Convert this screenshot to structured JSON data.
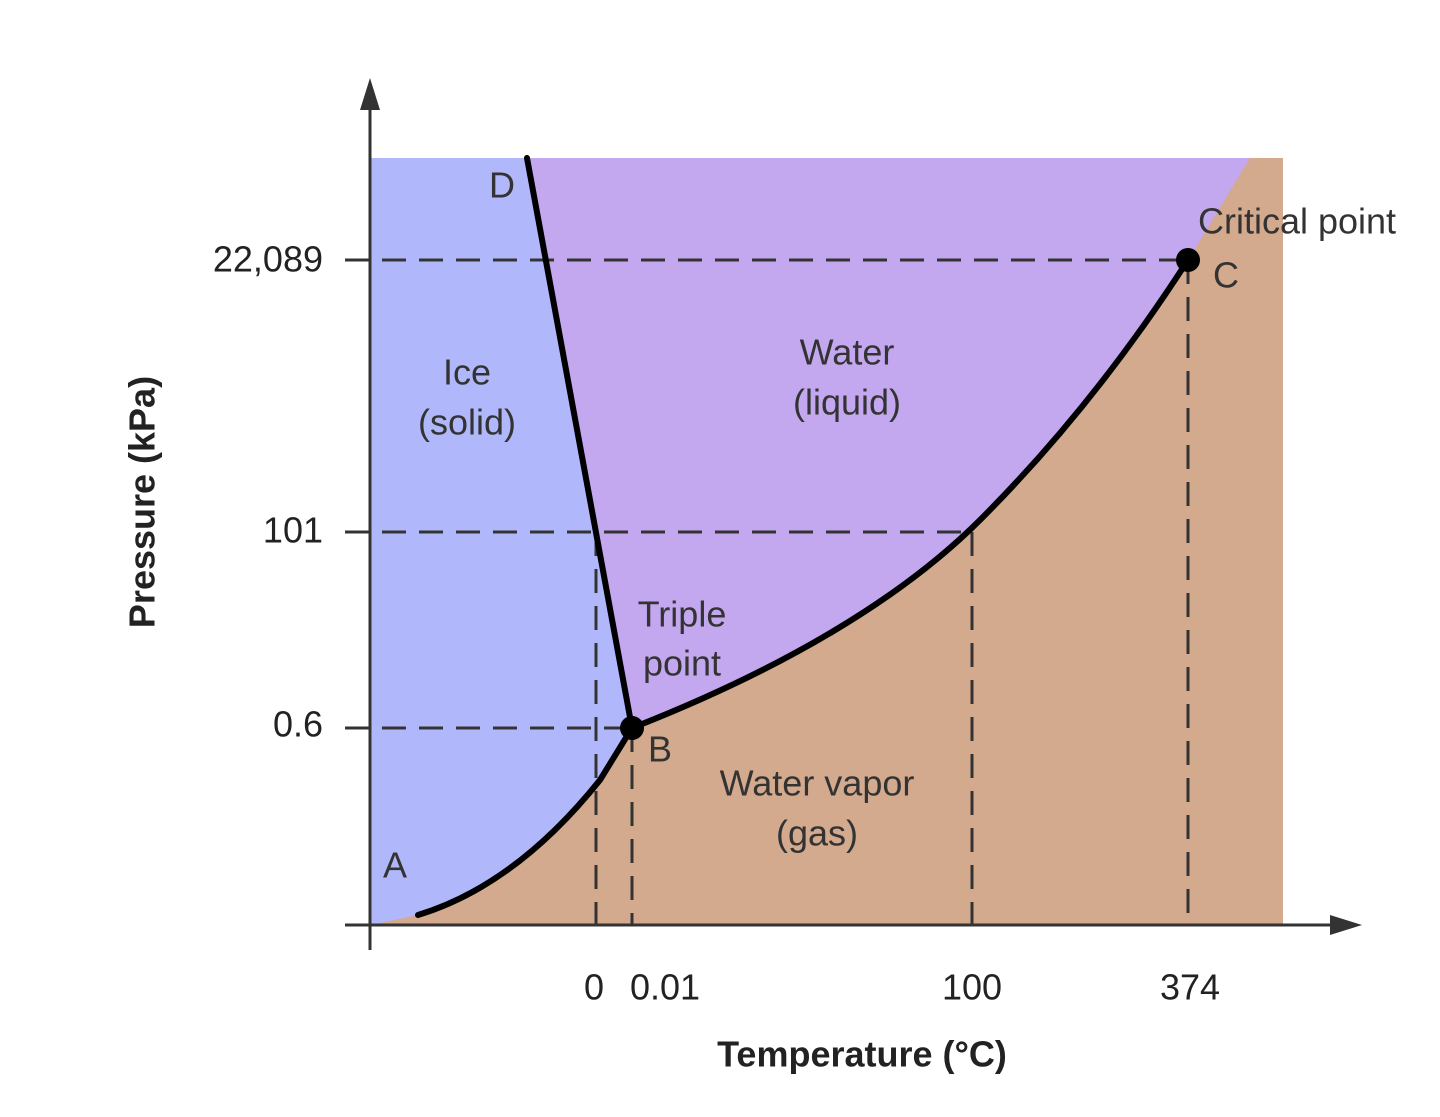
{
  "axes": {
    "x_label": "Temperature (°C)",
    "y_label": "Pressure (kPa)",
    "x_ticks": [
      "0",
      "0.01",
      "100",
      "374"
    ],
    "y_ticks": [
      "22,089",
      "101",
      "0.6"
    ]
  },
  "regions": {
    "ice": [
      "Ice",
      "(solid)"
    ],
    "water": [
      "Water",
      "(liquid)"
    ],
    "vapor": [
      "Water vapor",
      "(gas)"
    ]
  },
  "points": {
    "A": "A",
    "B": "B",
    "C": "C",
    "D": "D",
    "critical": "Critical point",
    "triple": [
      "Triple",
      "point"
    ]
  }
}
